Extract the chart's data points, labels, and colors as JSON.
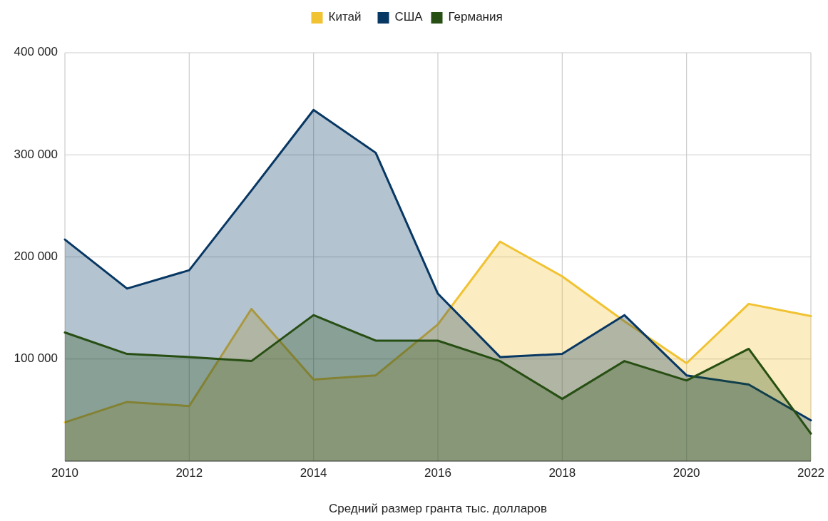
{
  "chart_data": {
    "type": "area",
    "xlabel": "Средний размер гранта тыс. долларов",
    "x": [
      2010,
      2011,
      2012,
      2013,
      2014,
      2015,
      2016,
      2017,
      2018,
      2019,
      2020,
      2021,
      2022
    ],
    "series": [
      {
        "name": "Китай",
        "color": "#f1c232",
        "values": [
          38000,
          58000,
          54000,
          149000,
          80000,
          84000,
          134000,
          215000,
          181000,
          137000,
          96000,
          154000,
          142000
        ]
      },
      {
        "name": "США",
        "color": "#073763",
        "values": [
          217000,
          169000,
          187000,
          265000,
          344000,
          302000,
          164000,
          102000,
          105000,
          143000,
          84000,
          75000,
          40000
        ]
      },
      {
        "name": "Германия",
        "color": "#274e13",
        "values": [
          126000,
          105000,
          102000,
          98000,
          143000,
          118000,
          118000,
          98000,
          61000,
          98000,
          79000,
          110000,
          27000
        ]
      }
    ],
    "xlim": [
      2010,
      2022
    ],
    "xticks": [
      2010,
      2012,
      2014,
      2016,
      2018,
      2020,
      2022
    ],
    "ylim": [
      0,
      400000
    ],
    "yticks": [
      {
        "value": 100000,
        "label": "100 000"
      },
      {
        "value": 200000,
        "label": "200 000"
      },
      {
        "value": 300000,
        "label": "300 000"
      },
      {
        "value": 400000,
        "label": "400 000"
      }
    ],
    "grid": true,
    "legend": "top"
  }
}
